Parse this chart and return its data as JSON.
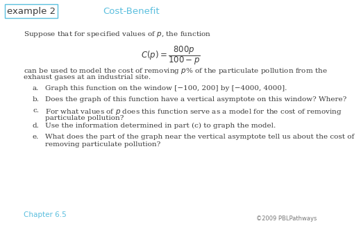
{
  "title_box_text": "example 2",
  "title_main_text": "Cost-Benefit",
  "intro_text": "Suppose that for specified values of $p$, the function",
  "formula": "$C(p) = \\dfrac{800p}{100 - p}$",
  "body_text_1": "can be used to model the cost of removing $p$% of the particulate pollution from the",
  "body_text_2": "exhaust gases at an industrial site.",
  "items": [
    [
      "Graph this function on the window [−100, 200] by [−4000, 4000]."
    ],
    [
      "Does the graph of this function have a vertical asymptote on this window? Where?"
    ],
    [
      "For what values of $p$ does this function serve as a model for the cost of removing",
      "particulate pollution?"
    ],
    [
      "Use the information determined in part (c) to graph the model."
    ],
    [
      "What does the part of the graph near the vertical asymptote tell us about the cost of",
      "removing particulate pollution?"
    ]
  ],
  "item_labels": [
    "a.",
    "b.",
    "c.",
    "d.",
    "e."
  ],
  "chapter_text": "Chapter 6.5",
  "copyright_text": "©2009 PBLPathways",
  "bg_color": "#ffffff",
  "box_border_color": "#5bbfde",
  "title_color": "#5bbfde",
  "chapter_color": "#5bbfde",
  "copyright_color": "#777777",
  "text_color": "#3a3a3a",
  "font_size": 7.5,
  "formula_font_size": 8.5,
  "title_font_size": 9.5
}
